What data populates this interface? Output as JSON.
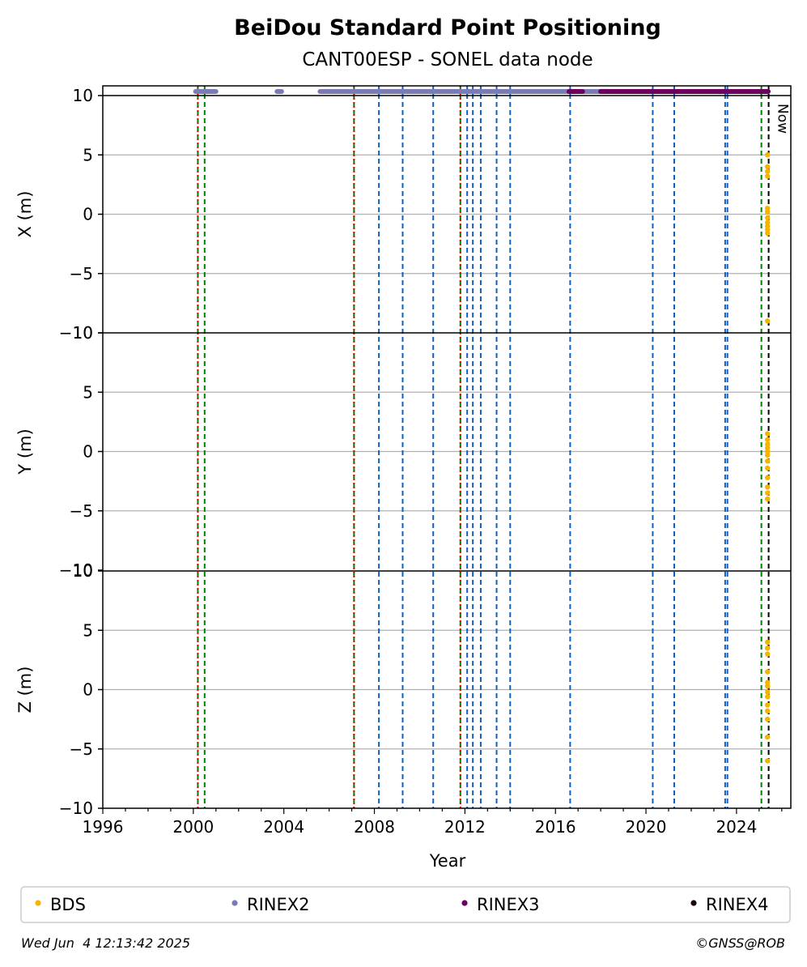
{
  "chart_data": {
    "type": "scatter",
    "title": "BeiDou Standard Point Positioning",
    "subtitle": "CANT00ESP - SONEL data node",
    "xlabel": "Year",
    "xlim": [
      1996,
      2026.4
    ],
    "xticks": [
      1996,
      2000,
      2004,
      2008,
      2012,
      2016,
      2020,
      2024
    ],
    "ylim": [
      -10,
      10
    ],
    "yticks": [
      -10,
      -5,
      0,
      5,
      10
    ],
    "grid": "y-major",
    "now_label": "Now",
    "now_x": 2025.42,
    "panels": [
      {
        "id": "x",
        "ylabel": "X (m)",
        "bds_x": 2025.37,
        "bds_y": [
          5.0,
          4.0,
          3.6,
          3.2,
          0.5,
          0.2,
          -0.3,
          -0.7,
          -1.0,
          -1.3,
          -1.6,
          -9.0
        ]
      },
      {
        "id": "y",
        "ylabel": "Y (m)",
        "bds_x": 2025.37,
        "bds_y": [
          1.5,
          1.0,
          0.6,
          0.3,
          0.0,
          -0.3,
          -0.8,
          -1.4,
          -2.2,
          -3.0,
          -3.5,
          -4.0
        ]
      },
      {
        "id": "z",
        "ylabel": "Z (m)",
        "bds_x": 2025.37,
        "bds_y": [
          4.0,
          3.5,
          3.0,
          1.5,
          0.6,
          0.3,
          -0.2,
          -0.6,
          -1.3,
          -1.8,
          -2.5,
          -4.0,
          -6.0
        ]
      }
    ],
    "availability_bars": [
      {
        "series": "RINEX2",
        "segments": [
          [
            2000.1,
            2001.0
          ],
          [
            2003.7,
            2003.9
          ],
          [
            2005.6,
            2018.0
          ]
        ]
      },
      {
        "series": "RINEX3",
        "segments": [
          [
            2016.6,
            2017.2
          ],
          [
            2018.0,
            2025.4
          ]
        ]
      }
    ],
    "event_lines": {
      "red_dotted": [
        2000.2,
        2007.1,
        2011.8
      ],
      "green_dashed": [
        2000.2,
        2000.5,
        2007.1,
        2011.8,
        2025.1
      ],
      "blue_dashed": [
        2008.2,
        2009.25,
        2010.6,
        2012.1,
        2012.35,
        2012.7,
        2013.4,
        2014.0,
        2016.65,
        2020.3,
        2021.25,
        2023.5,
        2023.6
      ],
      "black_dashed": [
        2025.42
      ]
    },
    "legend": {
      "placement": "bottom",
      "entries": [
        {
          "label": "BDS",
          "color": "#f5b400"
        },
        {
          "label": "RINEX2",
          "color": "#7b7bb8"
        },
        {
          "label": "RINEX3",
          "color": "#6b0060"
        },
        {
          "label": "RINEX4",
          "color": "#1a0010"
        }
      ]
    },
    "colors": {
      "bds": "#f5b400",
      "rinex2": "#7b7bb8",
      "rinex3": "#6b0060",
      "red": "#e00000",
      "green": "#008000",
      "blue": "#1060c0",
      "black": "#000000",
      "grid": "#b0b0b0"
    }
  },
  "footer": {
    "timestamp": "Wed Jun  4 12:13:42 2025",
    "credit": "©GNSS@ROB"
  }
}
